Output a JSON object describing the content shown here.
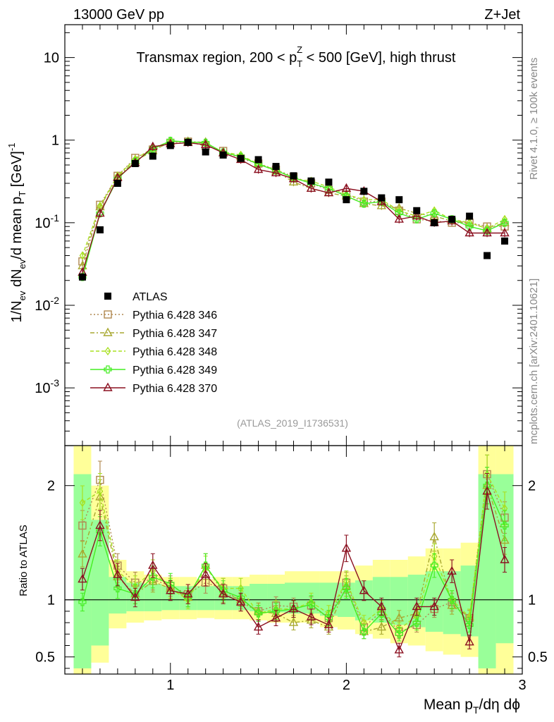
{
  "header": {
    "left": "13000 GeV pp",
    "right": "Z+Jet",
    "side_rivet": "Rivet 4.1.0, ≥ 100k events",
    "side_mcplots": "mcplots.cern.ch [arXiv:2401.10621]",
    "analysis_id": "(ATLAS_2019_I1736531)"
  },
  "colors": {
    "atlas": "#000000",
    "p346": "#b08850",
    "p347": "#a8a830",
    "p348": "#a8e020",
    "p349": "#44ee22",
    "p370": "#8b1020",
    "band_yellow": "#ffff99",
    "band_green": "#99ff99"
  },
  "chart_data": [
    {
      "type": "line",
      "title": "Transmax region, 200 < p_T^Z < 500 [GeV], high thrust",
      "ylabel": "1/N_ev dN_ev/d mean p_T [GeV]^-1",
      "yscale": "log",
      "ylim": [
        0.0002,
        25
      ],
      "xlim": [
        0.4,
        3.0
      ],
      "y_ticks": [
        "10^-3",
        "10^-2",
        "10^-1",
        "1",
        "10"
      ],
      "legend": [
        "ATLAS",
        "Pythia 6.428 346",
        "Pythia 6.428 347",
        "Pythia 6.428 348",
        "Pythia 6.428 349",
        "Pythia 6.428 370"
      ],
      "legend_position": "lower-left",
      "x": [
        0.5,
        0.6,
        0.7,
        0.8,
        0.9,
        1.0,
        1.1,
        1.2,
        1.3,
        1.4,
        1.5,
        1.6,
        1.7,
        1.8,
        1.9,
        2.0,
        2.1,
        2.2,
        2.3,
        2.4,
        2.5,
        2.6,
        2.7,
        2.8,
        2.9
      ],
      "series": [
        {
          "name": "ATLAS",
          "values": [
            0.022,
            0.082,
            0.3,
            0.52,
            0.64,
            0.86,
            0.94,
            0.72,
            0.66,
            0.6,
            0.58,
            0.48,
            0.37,
            0.32,
            0.31,
            0.19,
            0.24,
            0.2,
            0.19,
            0.14,
            0.1,
            0.11,
            0.12,
            0.04,
            0.06
          ]
        },
        {
          "name": "Pythia 6.428 346",
          "values": [
            0.034,
            0.165,
            0.37,
            0.61,
            0.77,
            0.93,
            0.96,
            0.85,
            0.74,
            0.6,
            0.52,
            0.44,
            0.36,
            0.3,
            0.25,
            0.22,
            0.18,
            0.18,
            0.14,
            0.11,
            0.105,
            0.1,
            0.1,
            0.09,
            0.09
          ]
        },
        {
          "name": "Pythia 6.428 347",
          "values": [
            0.03,
            0.155,
            0.36,
            0.56,
            0.74,
            0.96,
            0.96,
            0.94,
            0.7,
            0.63,
            0.52,
            0.42,
            0.31,
            0.26,
            0.23,
            0.21,
            0.17,
            0.16,
            0.15,
            0.13,
            0.12,
            0.105,
            0.1,
            0.085,
            0.1
          ]
        },
        {
          "name": "Pythia 6.428 348",
          "values": [
            0.04,
            0.16,
            0.37,
            0.59,
            0.8,
            0.97,
            0.95,
            0.92,
            0.72,
            0.66,
            0.51,
            0.44,
            0.34,
            0.32,
            0.27,
            0.22,
            0.19,
            0.19,
            0.14,
            0.12,
            0.14,
            0.11,
            0.1,
            0.085,
            0.11
          ]
        },
        {
          "name": "Pythia 6.428 349",
          "values": [
            0.022,
            0.13,
            0.34,
            0.55,
            0.78,
            0.98,
            0.95,
            0.93,
            0.71,
            0.63,
            0.51,
            0.43,
            0.35,
            0.3,
            0.26,
            0.21,
            0.17,
            0.18,
            0.13,
            0.11,
            0.13,
            0.11,
            0.09,
            0.08,
            0.1
          ]
        },
        {
          "name": "Pythia 6.428 370",
          "values": [
            0.025,
            0.13,
            0.35,
            0.53,
            0.83,
            0.9,
            0.93,
            0.88,
            0.7,
            0.58,
            0.44,
            0.4,
            0.34,
            0.26,
            0.23,
            0.26,
            0.24,
            0.18,
            0.11,
            0.12,
            0.1,
            0.105,
            0.075,
            0.075,
            0.075
          ]
        }
      ]
    },
    {
      "type": "line",
      "ylabel": "Ratio to ATLAS",
      "xlabel": "Mean p_T/dη dϕ",
      "ylim": [
        0.35,
        2.35
      ],
      "xlim": [
        0.4,
        3.0
      ],
      "x_ticks": [
        "1",
        "2",
        "3"
      ],
      "y_ticks": [
        "0.5",
        "1",
        "2"
      ],
      "reference_line": 1,
      "x": [
        0.5,
        0.6,
        0.7,
        0.8,
        0.9,
        1.0,
        1.1,
        1.2,
        1.3,
        1.4,
        1.5,
        1.6,
        1.7,
        1.8,
        1.9,
        2.0,
        2.1,
        2.2,
        2.3,
        2.4,
        2.5,
        2.6,
        2.7,
        2.8,
        2.9
      ],
      "bands": {
        "yellow_upper": [
          2.35,
          2.0,
          1.35,
          1.25,
          1.22,
          1.2,
          1.2,
          1.18,
          1.2,
          1.2,
          1.22,
          1.22,
          1.25,
          1.25,
          1.25,
          1.25,
          1.3,
          1.35,
          1.35,
          1.38,
          1.45,
          1.45,
          1.5,
          2.35,
          2.35
        ],
        "yellow_lower": [
          0.35,
          0.45,
          0.75,
          0.8,
          0.82,
          0.83,
          0.83,
          0.84,
          0.83,
          0.83,
          0.82,
          0.8,
          0.8,
          0.8,
          0.76,
          0.74,
          0.7,
          0.66,
          0.62,
          0.6,
          0.55,
          0.52,
          0.5,
          0.35,
          0.35
        ],
        "green_upper": [
          2.1,
          1.7,
          1.2,
          1.15,
          1.14,
          1.12,
          1.12,
          1.12,
          1.12,
          1.12,
          1.14,
          1.14,
          1.15,
          1.15,
          1.15,
          1.15,
          1.17,
          1.2,
          1.2,
          1.22,
          1.25,
          1.25,
          1.3,
          2.1,
          2.1
        ],
        "green_lower": [
          0.4,
          0.6,
          0.88,
          0.9,
          0.9,
          0.91,
          0.91,
          0.91,
          0.91,
          0.91,
          0.9,
          0.89,
          0.88,
          0.88,
          0.86,
          0.85,
          0.82,
          0.8,
          0.78,
          0.76,
          0.72,
          0.7,
          0.68,
          0.4,
          0.62
        ]
      },
      "series": [
        {
          "name": "Pythia 6.428 346",
          "values": [
            1.65,
            2.05,
            1.3,
            1.15,
            1.18,
            1.12,
            1.05,
            1.15,
            1.1,
            0.98,
            0.9,
            0.95,
            0.94,
            0.95,
            0.84,
            1.15,
            0.76,
            0.9,
            0.72,
            0.78,
            0.92,
            0.98,
            0.84,
            2.1,
            1.72
          ]
        },
        {
          "name": "Pythia 6.428 347",
          "values": [
            1.4,
            1.9,
            1.2,
            1.05,
            1.16,
            1.1,
            1.02,
            1.3,
            1.06,
            1.0,
            0.9,
            0.88,
            0.8,
            0.82,
            0.76,
            1.12,
            0.72,
            0.76,
            0.84,
            0.88,
            1.55,
            0.95,
            0.85,
            2.0,
            1.52
          ]
        },
        {
          "name": "Pythia 6.428 348",
          "values": [
            1.85,
            1.95,
            1.25,
            1.12,
            1.25,
            1.1,
            1.0,
            1.28,
            1.1,
            1.1,
            0.88,
            0.92,
            0.92,
            0.98,
            0.88,
            1.16,
            0.8,
            0.92,
            0.74,
            0.86,
            1.38,
            1.0,
            0.85,
            2.1,
            1.8
          ]
        },
        {
          "name": "Pythia 6.428 349",
          "values": [
            0.98,
            1.6,
            1.1,
            1.05,
            1.2,
            1.14,
            1.02,
            1.3,
            1.08,
            1.02,
            0.88,
            0.9,
            0.92,
            0.96,
            0.84,
            1.1,
            0.72,
            0.88,
            0.7,
            0.8,
            1.3,
            1.0,
            0.78,
            2.0,
            1.65
          ]
        },
        {
          "name": "Pythia 6.428 370",
          "values": [
            1.18,
            1.65,
            1.22,
            1.02,
            1.3,
            1.08,
            1.05,
            1.22,
            1.05,
            0.98,
            0.76,
            0.84,
            0.92,
            0.85,
            0.78,
            1.45,
            1.08,
            0.94,
            0.56,
            0.94,
            0.94,
            1.25,
            0.63,
            1.95,
            1.35
          ]
        }
      ]
    }
  ]
}
